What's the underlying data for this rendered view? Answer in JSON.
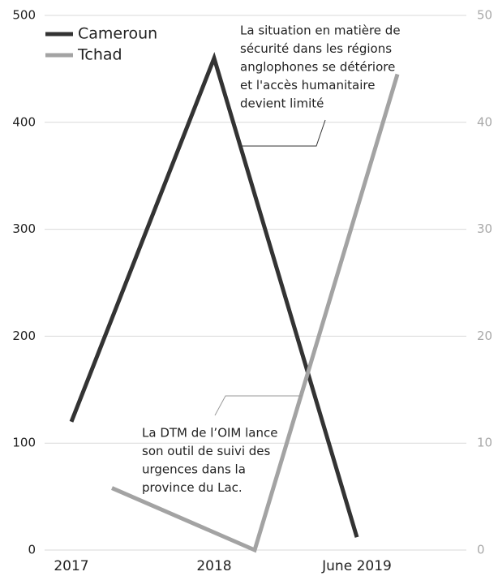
{
  "chart_data": {
    "type": "line",
    "categories": [
      "2017",
      "2018",
      "June 2019"
    ],
    "series": [
      {
        "name": "Cameroun",
        "color": "#333333",
        "values": [
          120,
          460,
          12
        ]
      },
      {
        "name": "Tchad",
        "color": "#a3a3a3",
        "values": [
          5.8,
          0,
          44.5
        ],
        "axis": "y2"
      }
    ],
    "ylim": [
      0,
      500
    ],
    "yticks": [
      0,
      100,
      200,
      300,
      400,
      500
    ],
    "y2lim": [
      0,
      50
    ],
    "y2ticks": [
      0,
      10,
      20,
      30,
      40,
      50
    ],
    "grid": true,
    "legend": "top-left",
    "annotations": [
      {
        "lines": [
          "La situation en matière de",
          "sécurité dans les régions",
          "anglophones se détériore",
          "et l'accès humanitaire",
          "devient limité"
        ]
      },
      {
        "lines": [
          "La DTM de l’OIM lance",
          "son outil de suivi des",
          "urgences dans la",
          "province du Lac."
        ]
      }
    ]
  }
}
